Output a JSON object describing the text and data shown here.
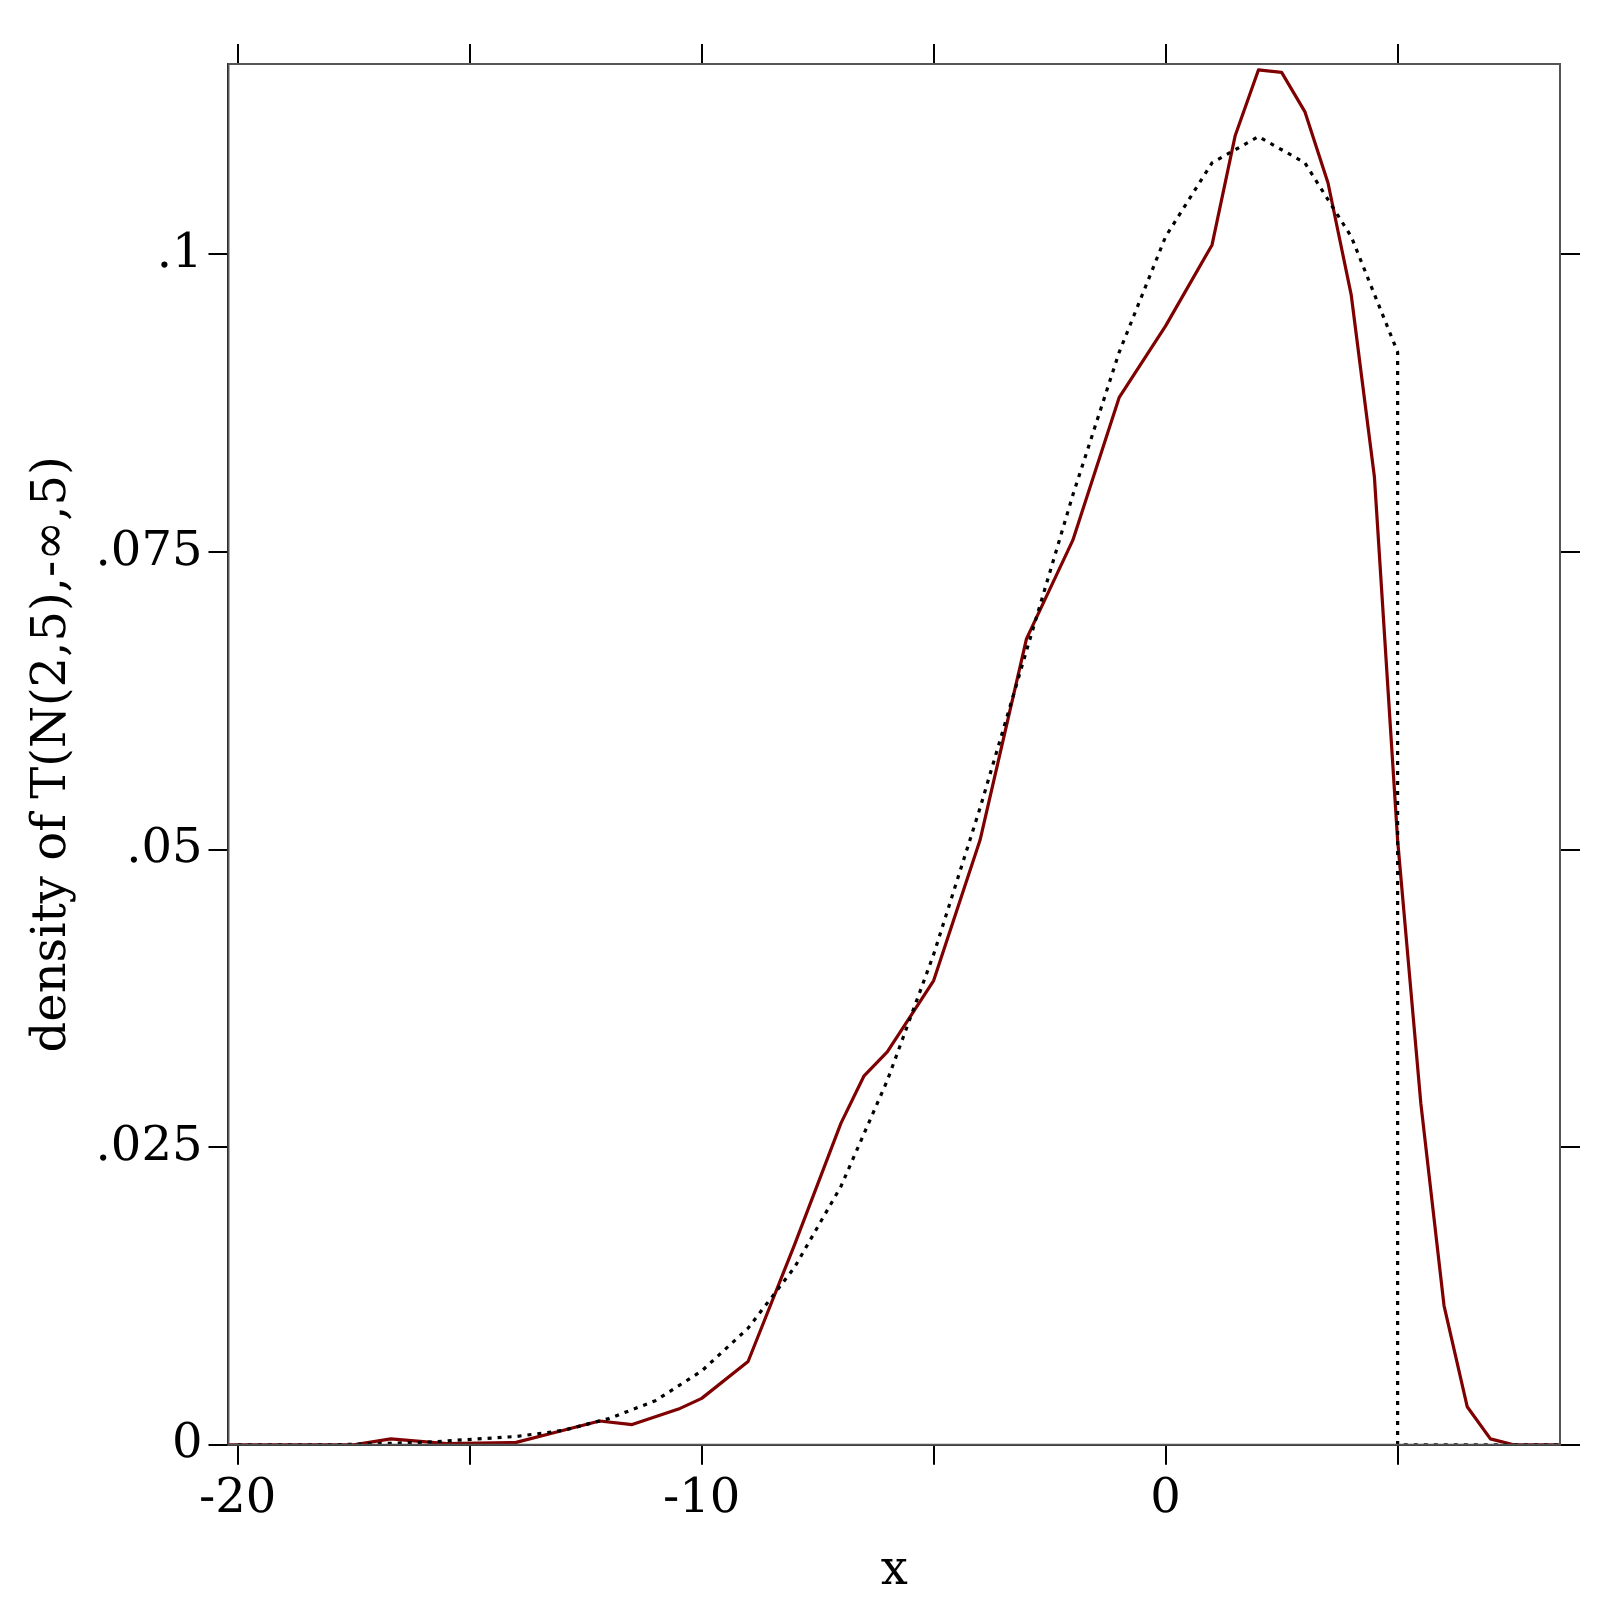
{
  "chart_data": {
    "type": "line",
    "xlabel": "x",
    "ylabel": "density of T(N(2,5),-∞,5)",
    "xlim": [
      -20.2,
      8.5
    ],
    "ylim": [
      0,
      0.116
    ],
    "xticks": [
      -20,
      {
        "value": -15,
        "label": null
      },
      -10,
      {
        "value": -5,
        "label": null
      },
      0,
      {
        "value": 5,
        "label": null
      }
    ],
    "yticks": [
      0,
      {
        "value": 0.025,
        "label": ".025"
      },
      {
        "value": 0.05,
        "label": ".05"
      },
      {
        "value": 0.075,
        "label": ".075"
      },
      {
        "value": 0.1,
        "label": ".1"
      }
    ],
    "grid": false,
    "marker": "none",
    "series": [
      {
        "color": "#000000",
        "line_style": "dotted",
        "x": [
          -20,
          -18,
          -16,
          -14,
          -13,
          -12,
          -11,
          -10,
          -9,
          -8,
          -7,
          -6,
          -5,
          -4,
          -3,
          -2,
          -1,
          0,
          1,
          2,
          3,
          4,
          5,
          5,
          8.5
        ],
        "values": [
          0,
          0,
          0.0002,
          0.0007,
          0.0012,
          0.0022,
          0.0037,
          0.0062,
          0.0098,
          0.0149,
          0.0217,
          0.0306,
          0.0412,
          0.0535,
          0.0667,
          0.0798,
          0.0918,
          0.1015,
          0.1077,
          0.1099,
          0.1077,
          0.1015,
          0.0918,
          0,
          0
        ]
      },
      {
        "color": "#7f0000",
        "line_style": "solid",
        "x": [
          -20.2,
          -17.5,
          -16.7,
          -15.5,
          -14,
          -13,
          -12.2,
          -11.5,
          -10.5,
          -10,
          -9,
          -8,
          -7,
          -6.5,
          -6,
          -5,
          -4,
          -3,
          -2,
          -1,
          0,
          1,
          1.5,
          2,
          2.5,
          3,
          3.5,
          4,
          4.5,
          5,
          5.5,
          6,
          6.5,
          7,
          7.5,
          8.5
        ],
        "values": [
          0,
          0,
          0.0005,
          0.0001,
          0.0002,
          0.0012,
          0.002,
          0.0017,
          0.003,
          0.0039,
          0.007,
          0.0168,
          0.027,
          0.031,
          0.033,
          0.039,
          0.0508,
          0.0677,
          0.076,
          0.088,
          0.094,
          0.1008,
          0.11,
          0.1155,
          0.1153,
          0.112,
          0.106,
          0.0966,
          0.0813,
          0.0508,
          0.0287,
          0.0117,
          0.0032,
          0.0005,
          0,
          0
        ]
      }
    ]
  }
}
